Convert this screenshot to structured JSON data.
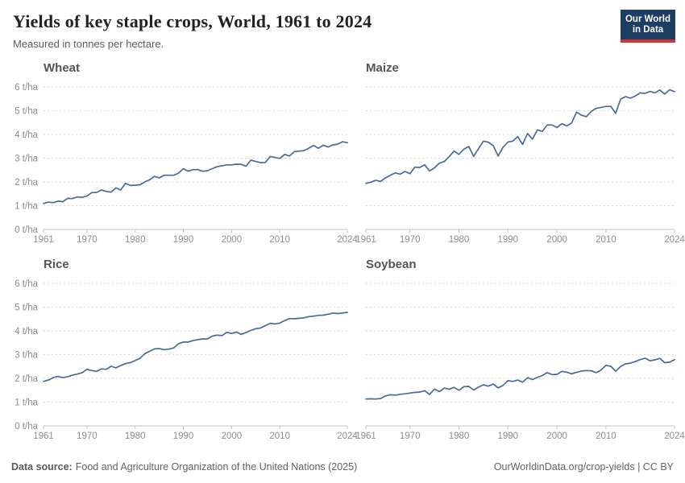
{
  "header": {
    "title": "Yields of key staple crops, World, 1961 to 2024",
    "subtitle": "Measured in tonnes per hectare.",
    "logo_line1": "Our World",
    "logo_line2": "in Data"
  },
  "footer": {
    "source_label": "Data source:",
    "source_text": "Food and Agriculture Organization of the United Nations (2025)",
    "link_text": "OurWorldinData.org/crop-yields | CC BY"
  },
  "colors": {
    "line": "#4a699e",
    "logo_bg": "#1d3d63",
    "logo_stripe": "#d0342c"
  },
  "chart_data": {
    "type": "line",
    "title": "Yields of key staple crops, World, 1961 to 2024",
    "subtitle": "Measured in tonnes per hectare.",
    "layout": "2x2 small multiples, shared axes",
    "unit": "t/ha",
    "ylabel": "tonnes per hectare",
    "ylim": [
      0,
      6
    ],
    "yticks": [
      0,
      1,
      2,
      3,
      4,
      5,
      6
    ],
    "xticks": [
      1961,
      1970,
      1980,
      1990,
      2000,
      2010,
      2024
    ],
    "grid": "horizontal dashed gridlines, solid baseline at 0",
    "legend": "none (one panel title per series)",
    "x": [
      1961,
      1962,
      1963,
      1964,
      1965,
      1966,
      1967,
      1968,
      1969,
      1970,
      1971,
      1972,
      1973,
      1974,
      1975,
      1976,
      1977,
      1978,
      1979,
      1980,
      1981,
      1982,
      1983,
      1984,
      1985,
      1986,
      1987,
      1988,
      1989,
      1990,
      1991,
      1992,
      1993,
      1994,
      1995,
      1996,
      1997,
      1998,
      1999,
      2000,
      2001,
      2002,
      2003,
      2004,
      2005,
      2006,
      2007,
      2008,
      2009,
      2010,
      2011,
      2012,
      2013,
      2014,
      2015,
      2016,
      2017,
      2018,
      2019,
      2020,
      2021,
      2022,
      2023,
      2024
    ],
    "panels": [
      {
        "name": "Wheat",
        "values": [
          1.09,
          1.15,
          1.13,
          1.19,
          1.17,
          1.31,
          1.3,
          1.37,
          1.35,
          1.41,
          1.55,
          1.56,
          1.66,
          1.6,
          1.57,
          1.75,
          1.66,
          1.94,
          1.85,
          1.86,
          1.88,
          2.0,
          2.09,
          2.23,
          2.17,
          2.28,
          2.28,
          2.28,
          2.37,
          2.56,
          2.45,
          2.52,
          2.52,
          2.45,
          2.47,
          2.56,
          2.64,
          2.68,
          2.72,
          2.72,
          2.75,
          2.74,
          2.66,
          2.92,
          2.86,
          2.81,
          2.82,
          3.07,
          3.03,
          2.99,
          3.16,
          3.09,
          3.27,
          3.3,
          3.32,
          3.42,
          3.54,
          3.42,
          3.55,
          3.47,
          3.56,
          3.59,
          3.69,
          3.65
        ]
      },
      {
        "name": "Maize",
        "values": [
          1.94,
          1.99,
          2.07,
          2.02,
          2.17,
          2.28,
          2.38,
          2.33,
          2.44,
          2.35,
          2.62,
          2.61,
          2.72,
          2.46,
          2.59,
          2.79,
          2.86,
          3.06,
          3.3,
          3.16,
          3.38,
          3.49,
          3.08,
          3.4,
          3.72,
          3.67,
          3.53,
          3.09,
          3.46,
          3.68,
          3.72,
          3.91,
          3.58,
          4.04,
          3.8,
          4.19,
          4.13,
          4.4,
          4.4,
          4.29,
          4.45,
          4.36,
          4.48,
          4.94,
          4.81,
          4.75,
          4.97,
          5.1,
          5.14,
          5.18,
          5.18,
          4.89,
          5.48,
          5.59,
          5.53,
          5.62,
          5.75,
          5.73,
          5.81,
          5.75,
          5.87,
          5.7,
          5.88,
          5.8
        ]
      },
      {
        "name": "Rice",
        "values": [
          1.87,
          1.93,
          2.03,
          2.08,
          2.03,
          2.07,
          2.14,
          2.18,
          2.24,
          2.38,
          2.33,
          2.29,
          2.4,
          2.38,
          2.51,
          2.44,
          2.54,
          2.62,
          2.66,
          2.75,
          2.84,
          3.04,
          3.14,
          3.24,
          3.25,
          3.21,
          3.23,
          3.28,
          3.46,
          3.53,
          3.53,
          3.59,
          3.63,
          3.66,
          3.66,
          3.78,
          3.82,
          3.8,
          3.94,
          3.89,
          3.95,
          3.85,
          3.93,
          4.02,
          4.09,
          4.12,
          4.22,
          4.32,
          4.29,
          4.33,
          4.43,
          4.52,
          4.51,
          4.53,
          4.55,
          4.6,
          4.62,
          4.65,
          4.66,
          4.7,
          4.75,
          4.73,
          4.75,
          4.78
        ]
      },
      {
        "name": "Soybean",
        "values": [
          1.13,
          1.14,
          1.13,
          1.15,
          1.26,
          1.31,
          1.29,
          1.33,
          1.35,
          1.38,
          1.41,
          1.42,
          1.48,
          1.32,
          1.55,
          1.44,
          1.59,
          1.54,
          1.62,
          1.5,
          1.65,
          1.66,
          1.51,
          1.63,
          1.73,
          1.67,
          1.76,
          1.6,
          1.7,
          1.9,
          1.87,
          1.93,
          1.84,
          2.03,
          1.95,
          2.04,
          2.12,
          2.24,
          2.16,
          2.17,
          2.29,
          2.26,
          2.19,
          2.25,
          2.31,
          2.33,
          2.32,
          2.24,
          2.35,
          2.55,
          2.51,
          2.3,
          2.5,
          2.61,
          2.64,
          2.71,
          2.79,
          2.85,
          2.74,
          2.78,
          2.84,
          2.66,
          2.68,
          2.79
        ]
      }
    ]
  }
}
